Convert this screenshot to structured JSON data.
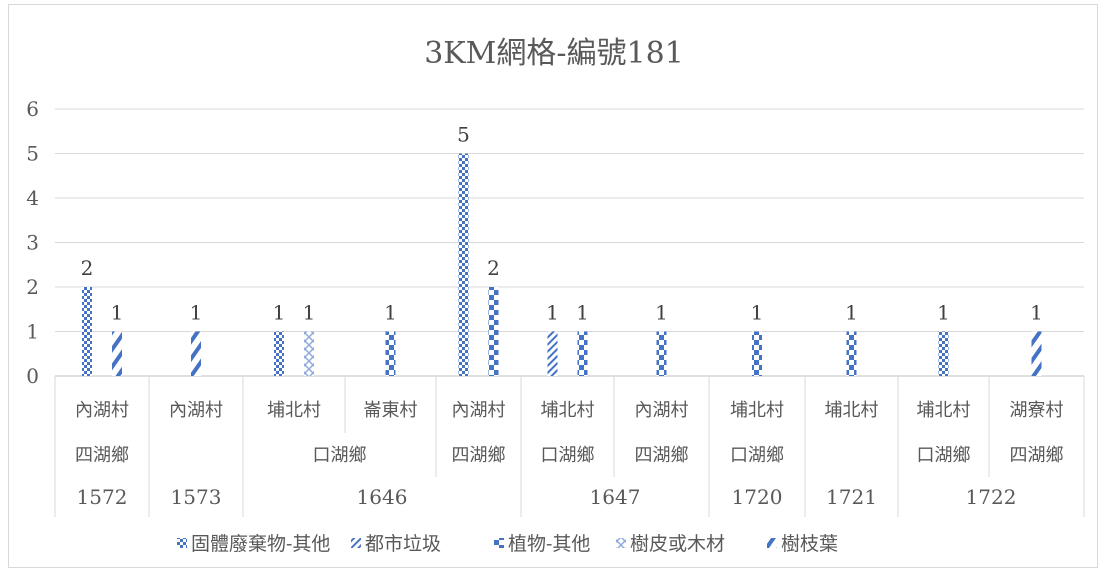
{
  "chart_data": {
    "type": "bar",
    "title": "3KM網格-編號181",
    "ylim": [
      0,
      6
    ],
    "yticks": [
      "0",
      "1",
      "2",
      "3",
      "4",
      "5",
      "6"
    ],
    "grid": true,
    "legend_position": "bottom",
    "categories": [
      {
        "village": "內湖村",
        "township": "四湖鄉",
        "grid": "1572"
      },
      {
        "village": "內湖村",
        "township": "",
        "grid": "1573"
      },
      {
        "village": "埔北村",
        "township": "口湖鄉",
        "grid": "1646"
      },
      {
        "village": "崙東村",
        "township": "口湖鄉",
        "grid": "1646"
      },
      {
        "village": "內湖村",
        "township": "四湖鄉",
        "grid": "1646"
      },
      {
        "village": "埔北村",
        "township": "口湖鄉",
        "grid": "1647"
      },
      {
        "village": "內湖村",
        "township": "四湖鄉",
        "grid": "1647"
      },
      {
        "village": "埔北村",
        "township": "口湖鄉",
        "grid": "1720"
      },
      {
        "village": "埔北村",
        "township": "",
        "grid": "1721"
      },
      {
        "village": "埔北村",
        "township": "口湖鄉",
        "grid": "1722"
      },
      {
        "village": "湖寮村",
        "township": "四湖鄉",
        "grid": "1722"
      }
    ],
    "township_groups": [
      {
        "label": "四湖鄉",
        "start": 0,
        "end": 0
      },
      {
        "label": "",
        "start": 1,
        "end": 1
      },
      {
        "label": "口湖鄉",
        "start": 2,
        "end": 3
      },
      {
        "label": "四湖鄉",
        "start": 4,
        "end": 4
      },
      {
        "label": "口湖鄉",
        "start": 5,
        "end": 5
      },
      {
        "label": "四湖鄉",
        "start": 6,
        "end": 6
      },
      {
        "label": "口湖鄉",
        "start": 7,
        "end": 7
      },
      {
        "label": "",
        "start": 8,
        "end": 8
      },
      {
        "label": "口湖鄉",
        "start": 9,
        "end": 9
      },
      {
        "label": "四湖鄉",
        "start": 10,
        "end": 10
      }
    ],
    "grid_groups": [
      {
        "label": "1572",
        "start": 0,
        "end": 0
      },
      {
        "label": "1573",
        "start": 1,
        "end": 1
      },
      {
        "label": "1646",
        "start": 2,
        "end": 4
      },
      {
        "label": "1647",
        "start": 5,
        "end": 6
      },
      {
        "label": "1720",
        "start": 7,
        "end": 7
      },
      {
        "label": "1721",
        "start": 8,
        "end": 8
      },
      {
        "label": "1722",
        "start": 9,
        "end": 10
      }
    ],
    "series": [
      {
        "name": "固體廢棄物-其他",
        "color": "#4472c4",
        "pattern": "checker",
        "values": [
          2,
          null,
          1,
          null,
          5,
          null,
          null,
          null,
          null,
          1,
          null
        ]
      },
      {
        "name": "都市垃圾",
        "color": "#4472c4",
        "pattern": "diag-dense",
        "values": [
          null,
          null,
          null,
          null,
          null,
          1,
          null,
          null,
          null,
          null,
          null
        ]
      },
      {
        "name": "植物-其他",
        "color": "#4472c4",
        "pattern": "checker-large",
        "values": [
          null,
          null,
          null,
          1,
          2,
          1,
          1,
          1,
          1,
          null,
          null
        ]
      },
      {
        "name": "樹皮或木材",
        "color": "#4472c4",
        "pattern": "lattice",
        "values": [
          null,
          null,
          1,
          null,
          null,
          null,
          null,
          null,
          null,
          null,
          null
        ]
      },
      {
        "name": "樹枝葉",
        "color": "#4472c4",
        "pattern": "diag-wide",
        "values": [
          1,
          1,
          null,
          null,
          null,
          null,
          null,
          null,
          null,
          null,
          1
        ]
      }
    ]
  }
}
